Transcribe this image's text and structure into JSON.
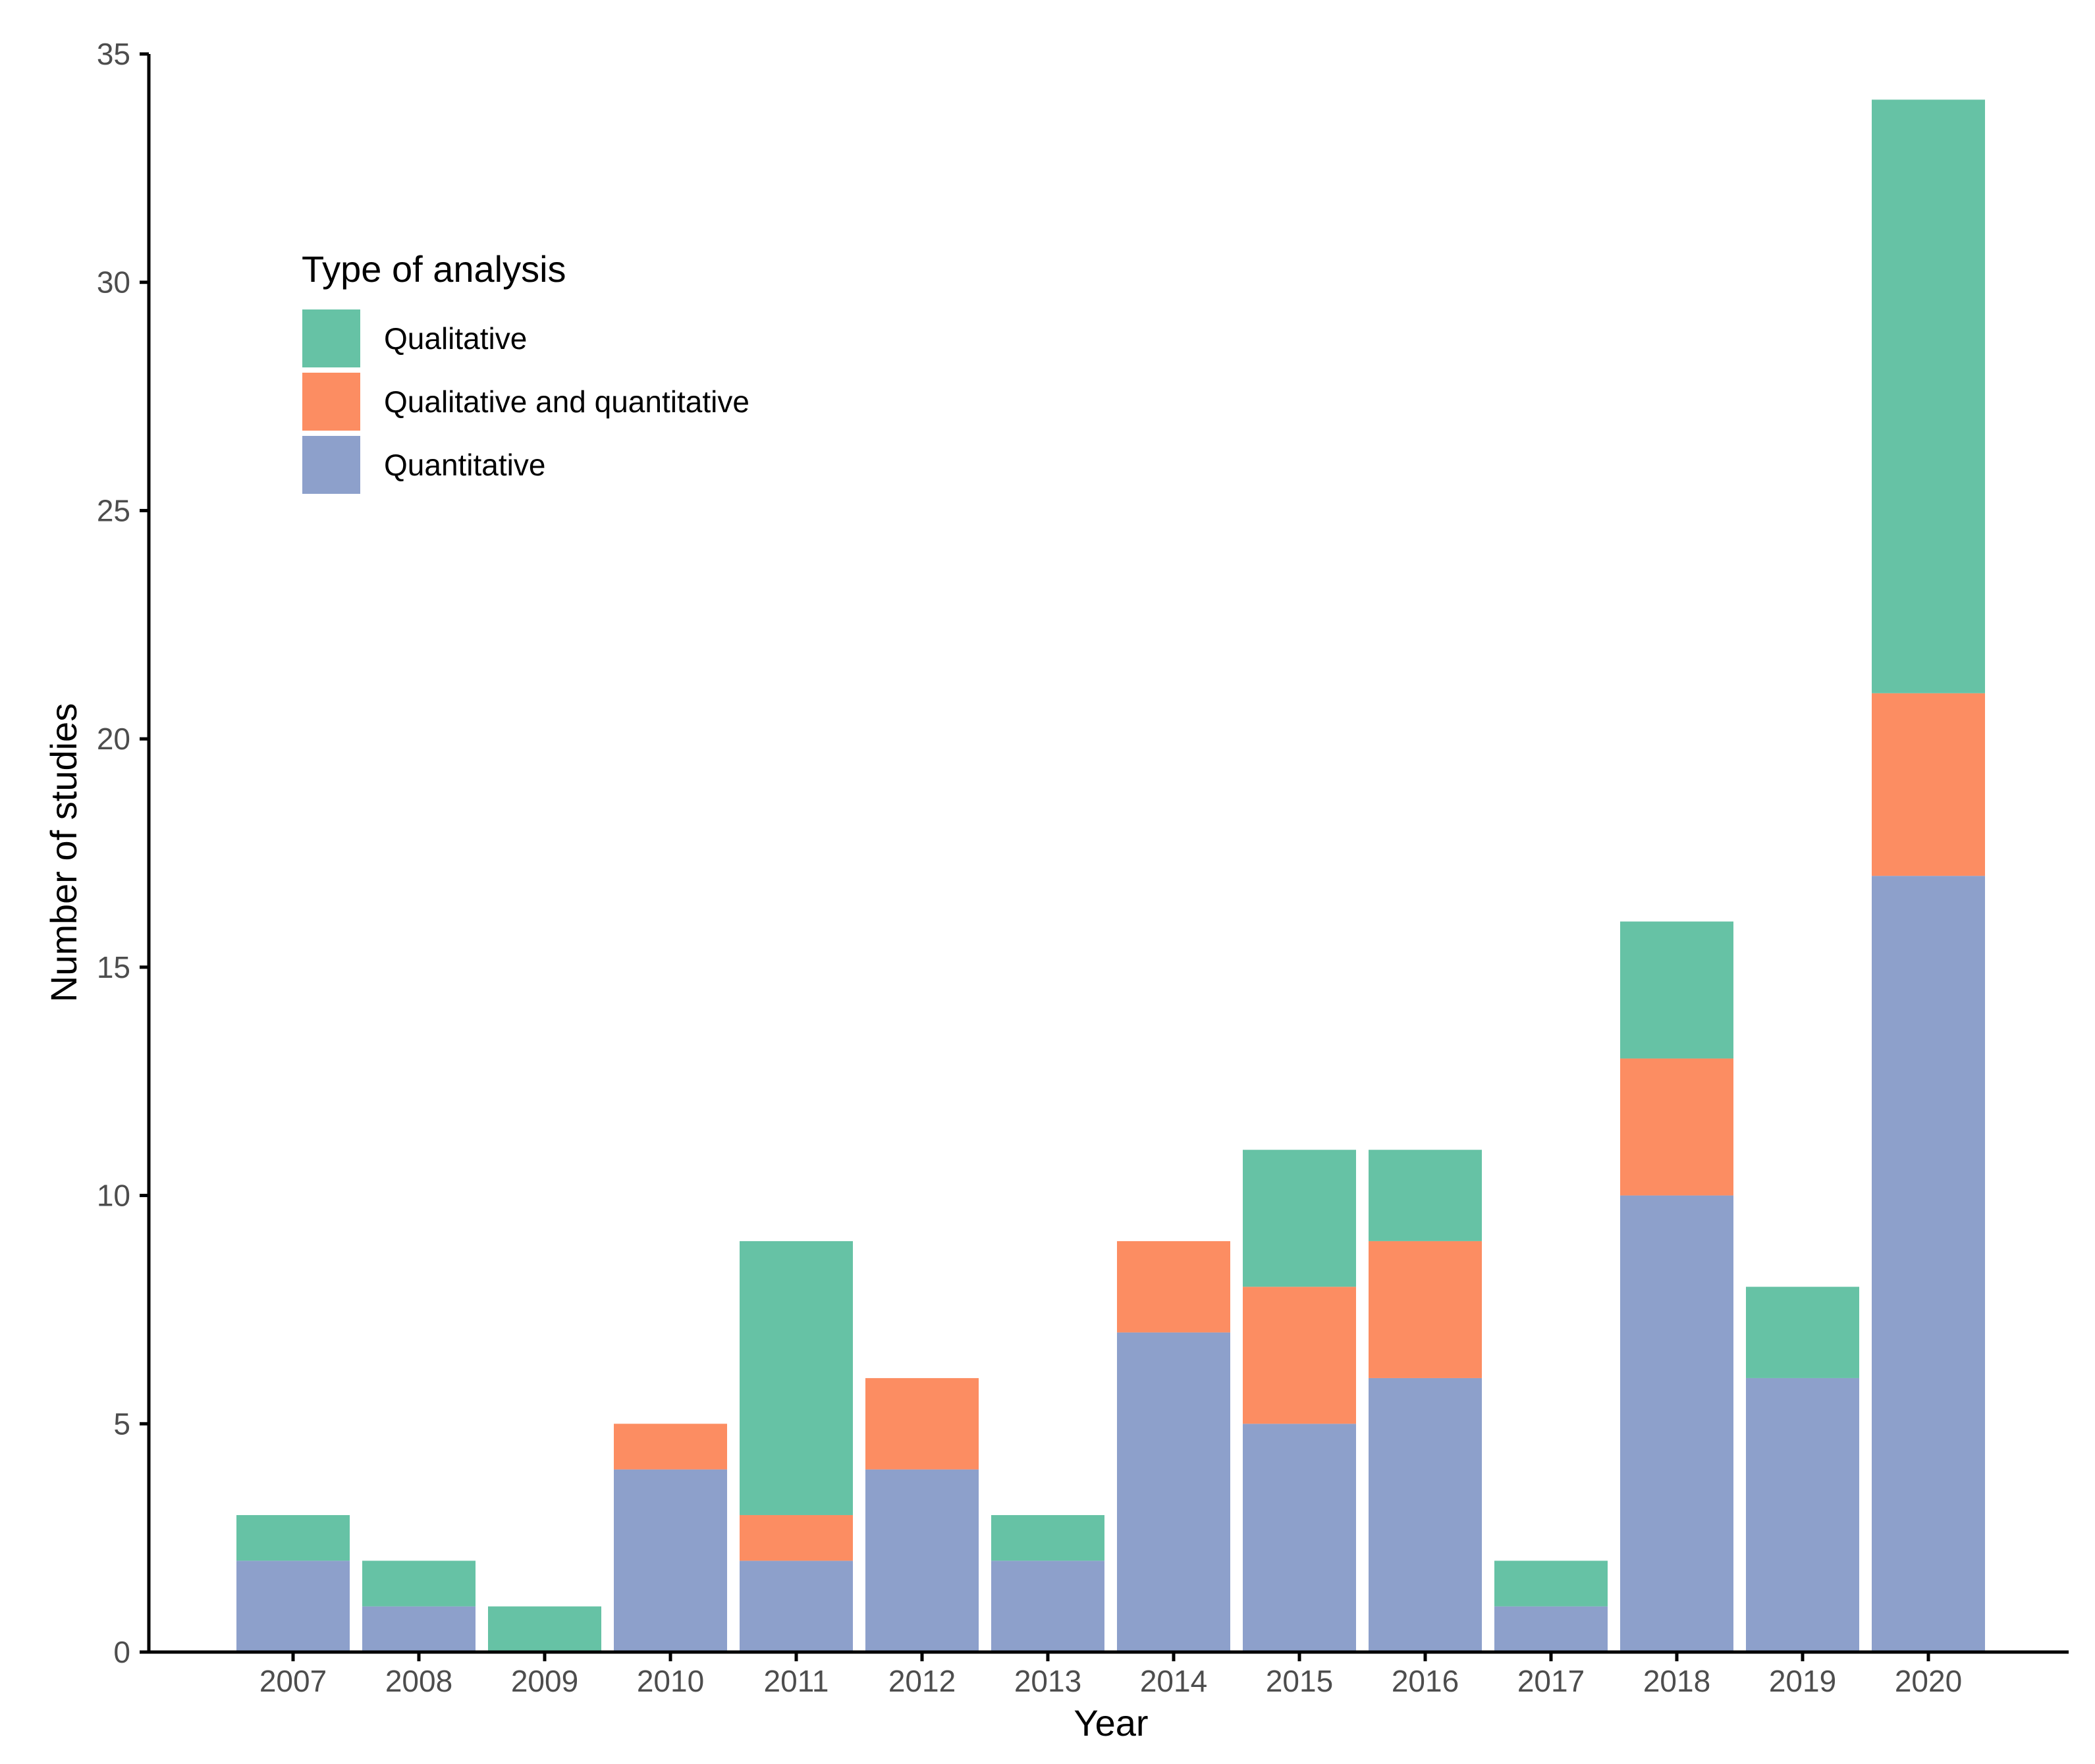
{
  "chart_data": {
    "type": "bar",
    "stacked": true,
    "title": "",
    "xlabel": "Year",
    "ylabel": "Number of studies",
    "ylim": [
      0,
      35
    ],
    "yticks": [
      0,
      5,
      10,
      15,
      20,
      25,
      30,
      35
    ],
    "categories": [
      "2007",
      "2008",
      "2009",
      "2010",
      "2011",
      "2012",
      "2013",
      "2014",
      "2015",
      "2016",
      "2017",
      "2018",
      "2019",
      "2020"
    ],
    "legend": {
      "title": "Type of analysis",
      "placement": "top-left"
    },
    "series": [
      {
        "name": "Qualitative",
        "color": "#66c2a5",
        "values": [
          1,
          1,
          1,
          0,
          6,
          0,
          1,
          0,
          3,
          2,
          1,
          3,
          2,
          13
        ]
      },
      {
        "name": "Qualitative and quantitative",
        "color": "#fc8d62",
        "values": [
          0,
          0,
          0,
          1,
          1,
          2,
          0,
          2,
          3,
          3,
          0,
          3,
          0,
          4
        ]
      },
      {
        "name": "Quantitative",
        "color": "#8da0cb",
        "values": [
          2,
          1,
          0,
          4,
          2,
          4,
          2,
          7,
          5,
          6,
          1,
          10,
          6,
          17
        ]
      }
    ],
    "stack_order_bottom_to_top": [
      "Quantitative",
      "Qualitative and quantitative",
      "Qualitative"
    ],
    "grid": false
  }
}
